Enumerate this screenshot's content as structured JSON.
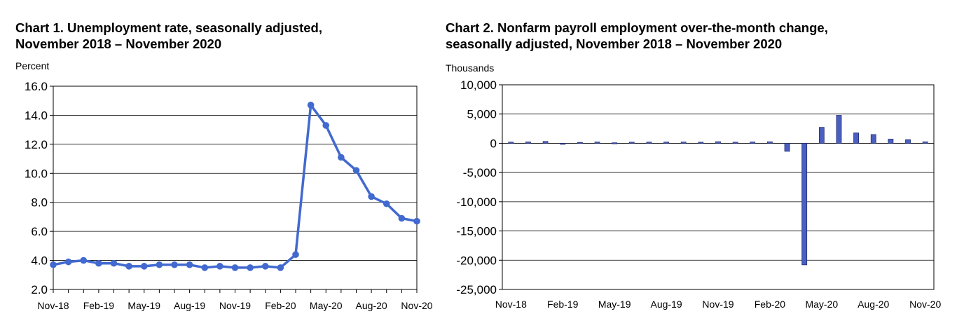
{
  "chart_data": [
    {
      "type": "line",
      "title_line1": "Chart 1. Unemployment rate, seasonally adjusted,",
      "title_line2": "November 2018 – November 2020",
      "ylabel": "Percent",
      "ylim": [
        2.0,
        16.0
      ],
      "yticks": [
        "16.0",
        "14.0",
        "12.0",
        "10.0",
        "8.0",
        "6.0",
        "4.0",
        "2.0"
      ],
      "xtick_labels": [
        "Nov-18",
        "Feb-19",
        "May-19",
        "Aug-19",
        "Nov-19",
        "Feb-20",
        "May-20",
        "Aug-20",
        "Nov-20"
      ],
      "x": [
        "Nov-18",
        "Dec-18",
        "Jan-19",
        "Feb-19",
        "Mar-19",
        "Apr-19",
        "May-19",
        "Jun-19",
        "Jul-19",
        "Aug-19",
        "Sep-19",
        "Oct-19",
        "Nov-19",
        "Dec-19",
        "Jan-20",
        "Feb-20",
        "Mar-20",
        "Apr-20",
        "May-20",
        "Jun-20",
        "Jul-20",
        "Aug-20",
        "Sep-20",
        "Oct-20",
        "Nov-20"
      ],
      "values": [
        3.7,
        3.9,
        4.0,
        3.8,
        3.8,
        3.6,
        3.6,
        3.7,
        3.7,
        3.7,
        3.5,
        3.6,
        3.5,
        3.5,
        3.6,
        3.5,
        4.4,
        14.7,
        13.3,
        11.1,
        10.2,
        8.4,
        7.9,
        6.9,
        6.7
      ],
      "color": "#4169cf",
      "grid": true
    },
    {
      "type": "bar",
      "title_line1": "Chart 2. Nonfarm payroll employment over-the-month change,",
      "title_line2": "seasonally adjusted, November 2018 – November 2020",
      "ylabel": "Thousands",
      "ylim": [
        -25000,
        10000
      ],
      "yticks": [
        "10,000",
        "5,000",
        "0",
        "-5,000",
        "-10,000",
        "-15,000",
        "-20,000",
        "-25,000"
      ],
      "xtick_labels": [
        "Nov-18",
        "Feb-19",
        "May-19",
        "Aug-19",
        "Nov-19",
        "Feb-20",
        "May-20",
        "Aug-20",
        "Nov-20"
      ],
      "x": [
        "Nov-18",
        "Dec-18",
        "Jan-19",
        "Feb-19",
        "Mar-19",
        "Apr-19",
        "May-19",
        "Jun-19",
        "Jul-19",
        "Aug-19",
        "Sep-19",
        "Oct-19",
        "Nov-19",
        "Dec-19",
        "Jan-20",
        "Feb-20",
        "Mar-20",
        "Apr-20",
        "May-20",
        "Jun-20",
        "Jul-20",
        "Aug-20",
        "Sep-20",
        "Oct-20",
        "Nov-20"
      ],
      "values": [
        196,
        227,
        312,
        1,
        147,
        210,
        85,
        182,
        194,
        207,
        208,
        185,
        261,
        184,
        214,
        251,
        -1373,
        -20787,
        2725,
        4781,
        1761,
        1493,
        711,
        610,
        245
      ],
      "color": "#4a5fc1",
      "grid": true
    }
  ]
}
